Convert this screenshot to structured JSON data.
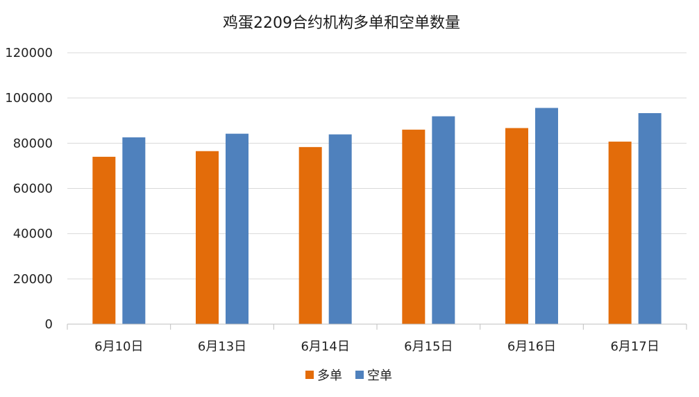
{
  "chart_data": {
    "type": "bar",
    "title": "鸡蛋2209合约机构多单和空单数量",
    "xlabel": "",
    "ylabel": "",
    "categories": [
      "6月10日",
      "6月13日",
      "6月14日",
      "6月15日",
      "6月16日",
      "6月17日"
    ],
    "series": [
      {
        "name": "多单",
        "color": "#E36C0A",
        "values": [
          74000,
          76500,
          78300,
          86000,
          86700,
          80700
        ]
      },
      {
        "name": "空单",
        "color": "#4F81BD",
        "values": [
          82600,
          84200,
          83900,
          91900,
          95600,
          93300
        ]
      }
    ],
    "ylim": [
      0,
      120000
    ],
    "yticks": [
      "0",
      "20000",
      "40000",
      "60000",
      "80000",
      "100000",
      "120000"
    ],
    "grid": true,
    "legend_position": "bottom"
  }
}
